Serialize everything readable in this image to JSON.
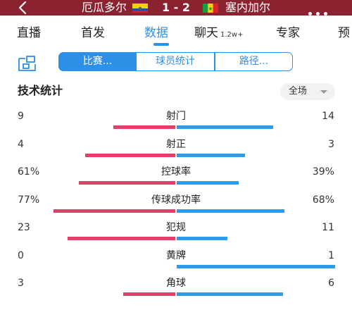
{
  "header": {
    "home_team": "厄瓜多尔",
    "score": "1 - 2",
    "away_team": "塞内加尔",
    "bg_color": "#8a2230"
  },
  "tabs": [
    {
      "label": "直播",
      "badge": ""
    },
    {
      "label": "首发",
      "badge": ""
    },
    {
      "label": "数据",
      "badge": "",
      "active": true
    },
    {
      "label": "聊天",
      "badge": "1.2w+"
    },
    {
      "label": "专家",
      "badge": ""
    },
    {
      "label": "预",
      "badge": ""
    }
  ],
  "segments": [
    "比赛...",
    "球员统计",
    "路径..."
  ],
  "section": {
    "title": "技术统计",
    "range": "全场"
  },
  "colors": {
    "accent": "#2e8fe6",
    "home_bar": "#e33d6a",
    "away_bar": "#2e9be8"
  },
  "stats": [
    {
      "label": "射门",
      "home": "9",
      "away": "14",
      "home_share": 0.39,
      "away_share": 0.61
    },
    {
      "label": "射正",
      "home": "4",
      "away": "3",
      "home_share": 0.57,
      "away_share": 0.43
    },
    {
      "label": "控球率",
      "home": "61%",
      "away": "39%",
      "home_share": 0.61,
      "away_share": 0.39
    },
    {
      "label": "传球成功率",
      "home": "77%",
      "away": "68%",
      "home_share": 0.77,
      "away_share": 0.68
    },
    {
      "label": "犯规",
      "home": "23",
      "away": "11",
      "home_share": 0.68,
      "away_share": 0.32
    },
    {
      "label": "黄牌",
      "home": "0",
      "away": "1",
      "home_share": 0.0,
      "away_share": 1.0
    },
    {
      "label": "角球",
      "home": "3",
      "away": "6",
      "home_share": 0.33,
      "away_share": 0.67
    }
  ]
}
